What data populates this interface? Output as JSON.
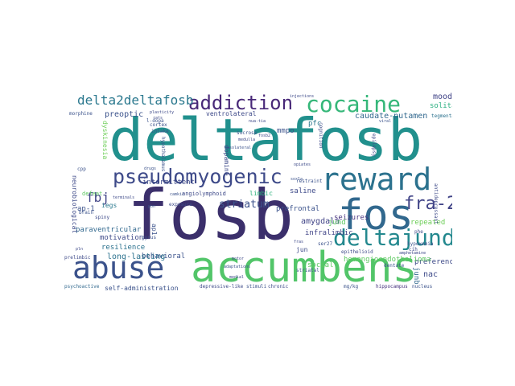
{
  "cloud": {
    "words": [
      {
        "text": "deltafosb",
        "color": "#21908d"
      },
      {
        "text": "fosb",
        "color": "#3b2f6b"
      },
      {
        "text": "accumbens",
        "color": "#52c569"
      },
      {
        "text": "abuse",
        "color": "#3b528b"
      },
      {
        "text": "reward",
        "color": "#2c728e"
      },
      {
        "text": "fos",
        "color": "#31688e"
      },
      {
        "text": "cocaine",
        "color": "#35b779"
      },
      {
        "text": "deltajund",
        "color": "#23888e"
      },
      {
        "text": "pseudomyogenic",
        "color": "#3e4a89"
      },
      {
        "text": "addiction",
        "color": "#482878"
      },
      {
        "text": "fra-2",
        "color": "#414487"
      },
      {
        "text": "delta2deltafosb",
        "color": "#2a788e"
      },
      {
        "text": "striatum",
        "color": "#3b528b"
      },
      {
        "text": "fbj",
        "color": "#414487"
      },
      {
        "text": "caudate-putamen",
        "color": "#31688e"
      },
      {
        "text": "mood",
        "color": "#414487"
      },
      {
        "text": "solitary",
        "color": "#29af7f"
      },
      {
        "text": "tegmental",
        "color": "#2c728e"
      },
      {
        "text": "amygdala",
        "color": "#414487"
      },
      {
        "text": "behavioral",
        "color": "#3b528b"
      },
      {
        "text": "long-lasting",
        "color": "#2c728e"
      },
      {
        "text": "resilience",
        "color": "#2c728e"
      },
      {
        "text": "motivation",
        "color": "#3e4a89"
      },
      {
        "text": "paraventricular",
        "color": "#31688e"
      },
      {
        "text": "self-administration",
        "color": "#3b528b"
      },
      {
        "text": "preference",
        "color": "#3e4a89"
      },
      {
        "text": "seizures",
        "color": "#46327e"
      },
      {
        "text": "prefrontal",
        "color": "#3b528b"
      },
      {
        "text": "infralimbic",
        "color": "#414487"
      },
      {
        "text": "hemangioendothelioma",
        "color": "#5ec962"
      },
      {
        "text": "repeated",
        "color": "#6ece58"
      },
      {
        "text": "social",
        "color": "#5ec962"
      },
      {
        "text": "nac",
        "color": "#3e4a89"
      },
      {
        "text": "junb",
        "color": "#31688e"
      },
      {
        "text": "jund",
        "color": "#5ec962"
      },
      {
        "text": "jun",
        "color": "#3e4a89"
      },
      {
        "text": "restraint",
        "color": "#3b528b"
      },
      {
        "text": "saline",
        "color": "#3e4a89"
      },
      {
        "text": "mmpo",
        "color": "#3b528b"
      },
      {
        "text": "pfc",
        "color": "#2a788e"
      },
      {
        "text": "preoptic",
        "color": "#3b528b"
      },
      {
        "text": "ventrolateral",
        "color": "#3e4a89"
      },
      {
        "text": "intermittent",
        "color": "#3e4a89"
      },
      {
        "text": "limbic",
        "color": "#2db27d"
      },
      {
        "text": "defeat",
        "color": "#5ec962"
      },
      {
        "text": "angiolymphoid",
        "color": "#3e4a89"
      },
      {
        "text": "iegs",
        "color": "#2a788e"
      },
      {
        "text": "ap-1",
        "color": "#3b528b"
      },
      {
        "text": "dopamine",
        "color": "#3e4a89"
      },
      {
        "text": "stimuli",
        "color": "#3b528b"
      },
      {
        "text": "chronic",
        "color": "#3e4a89"
      },
      {
        "text": "hippocampus",
        "color": "#46327e"
      },
      {
        "text": "nucleus",
        "color": "#3b528b"
      },
      {
        "text": "psychoactive",
        "color": "#31688e"
      },
      {
        "text": "depressive-like",
        "color": "#3e4a89"
      },
      {
        "text": "morphine",
        "color": "#3b528b"
      },
      {
        "text": "injections",
        "color": "#3e4a89"
      },
      {
        "text": "cortex",
        "color": "#3b528b"
      },
      {
        "text": "intake",
        "color": "#3b528b"
      },
      {
        "text": "l-dopa",
        "color": "#3b528b"
      },
      {
        "text": "plasticity",
        "color": "#3e4a89"
      },
      {
        "text": "sucrose",
        "color": "#3b528b"
      },
      {
        "text": "medulla",
        "color": "#3e4a89"
      },
      {
        "text": "rats",
        "color": "#3e4a89"
      },
      {
        "text": "brain",
        "color": "#3b528b"
      },
      {
        "text": "spiny",
        "color": "#3e4a89"
      },
      {
        "text": "gyrus",
        "color": "#3b528b"
      },
      {
        "text": "camkii",
        "color": "#3b528b"
      },
      {
        "text": "exposure",
        "color": "#3e4a89"
      },
      {
        "text": "pbn",
        "color": "#3b528b"
      },
      {
        "text": "epithelioid",
        "color": "#3e4a89"
      },
      {
        "text": "dentate",
        "color": "#3b528b"
      },
      {
        "text": "cognition",
        "color": "#3e4a89"
      },
      {
        "text": "epilepsy",
        "color": "#3e4a89"
      },
      {
        "text": "viral",
        "color": "#3b528b"
      },
      {
        "text": "phe",
        "color": "#3e4a89"
      },
      {
        "text": "hypoxemia",
        "color": "#3b528b"
      },
      {
        "text": "cih",
        "color": "#3e4a89"
      },
      {
        "text": "mg/kg",
        "color": "#3b528b"
      },
      {
        "text": "ser27",
        "color": "#3b528b"
      },
      {
        "text": "fras",
        "color": "#3e4a89"
      },
      {
        "text": "striatal",
        "color": "#3b528b"
      },
      {
        "text": "medial",
        "color": "#3e4a89"
      },
      {
        "text": "adaptations",
        "color": "#3b528b"
      },
      {
        "text": "motor",
        "color": "#3e4a89"
      },
      {
        "text": "hypothalamus",
        "color": "#3b528b"
      },
      {
        "text": "nua-tia",
        "color": "#3e4a89"
      },
      {
        "text": "drugs",
        "color": "#3b528b"
      },
      {
        "text": "cpp",
        "color": "#3b528b"
      },
      {
        "text": "pln",
        "color": "#3e4a89"
      },
      {
        "text": "prelimbic",
        "color": "#3e4a89"
      },
      {
        "text": "ap1",
        "color": "#3b528b"
      },
      {
        "text": "fosb2",
        "color": "#3e4a89"
      },
      {
        "text": "sox1a",
        "color": "#3b528b"
      },
      {
        "text": "amphetamine",
        "color": "#3e4a89"
      },
      {
        "text": "basolateral",
        "color": "#3b528b"
      },
      {
        "text": "neurobiological",
        "color": "#3e4a89"
      },
      {
        "text": "antidepressant",
        "color": "#3e4a89"
      },
      {
        "text": "dyskinesia",
        "color": "#6ece58"
      },
      {
        "text": "opiates",
        "color": "#3e4a89"
      },
      {
        "text": "terminals",
        "color": "#3e4a89"
      }
    ]
  }
}
